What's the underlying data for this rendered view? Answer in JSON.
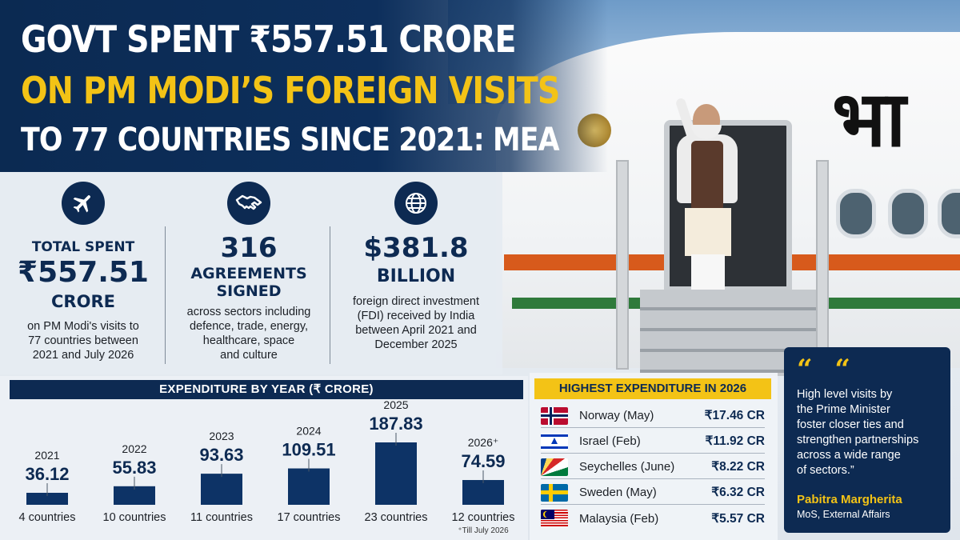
{
  "headline": {
    "line1": "GOVT SPENT ₹557.51 CRORE",
    "line2": "ON PM MODI’S FOREIGN VISITS",
    "line3": "TO 77 COUNTRIES SINCE 2021: MEA"
  },
  "photo": {
    "aircraft_text": "भा"
  },
  "stats": [
    {
      "icon": "airplane-icon",
      "label": "TOTAL SPENT",
      "value": "₹557.51",
      "unit": "CRORE",
      "desc": [
        "on PM Modi's visits to",
        "77 countries between",
        "2021 and July 2026"
      ]
    },
    {
      "icon": "handshake-icon",
      "value": "316",
      "label_lines": [
        "AGREEMENTS",
        "SIGNED"
      ],
      "desc": [
        "across sectors including",
        "defence, trade, energy,",
        "healthcare, space",
        "and culture"
      ]
    },
    {
      "icon": "globe-icon",
      "value": "$381.8",
      "unit": "BILLION",
      "desc": [
        "foreign direct investment",
        "(FDI) received by India",
        "between April 2021 and",
        "December 2025"
      ]
    }
  ],
  "bar_section_title": "EXPENDITURE BY YEAR (₹ CRORE)",
  "chart_data": {
    "type": "bar",
    "title": "EXPENDITURE BY YEAR (₹ CRORE)",
    "categories": [
      "2021",
      "2022",
      "2023",
      "2024",
      "2025",
      "2026⁺"
    ],
    "values": [
      36.12,
      55.83,
      93.63,
      109.51,
      187.83,
      74.59
    ],
    "value_labels": [
      "36.12",
      "55.83",
      "93.63",
      "109.51",
      "187.83",
      "74.59"
    ],
    "sublabels": [
      "4 countries",
      "10 countries",
      "11 countries",
      "17 countries",
      "23 countries",
      "12 countries"
    ],
    "footnote": "⁺Till July 2026",
    "ylim": [
      0,
      187.83
    ],
    "bar_color": "#0d3366"
  },
  "highest": {
    "title": "HIGHEST EXPENDITURE IN 2026",
    "rows": [
      {
        "flag": "norway-flag",
        "country": "Norway (May)",
        "amount": "₹17.46 CR"
      },
      {
        "flag": "israel-flag",
        "country": "Israel (Feb)",
        "amount": "₹11.92 CR"
      },
      {
        "flag": "seychelles-flag",
        "country": "Seychelles (June)",
        "amount": "₹8.22 CR"
      },
      {
        "flag": "sweden-flag",
        "country": "Sweden (May)",
        "amount": "₹6.32 CR"
      },
      {
        "flag": "malaysia-flag",
        "country": "Malaysia (Feb)",
        "amount": "₹5.57 CR"
      }
    ]
  },
  "quote": {
    "marks": "“ “",
    "lines": [
      "High level visits by",
      "the Prime Minister",
      "foster closer ties and",
      "strengthen partnerships",
      "across a wide range",
      "of sectors.”"
    ],
    "name": "Pabitra Margherita",
    "role": "MoS, External Affairs"
  },
  "colors": {
    "navy": "#0d2a52",
    "accent_yellow": "#f3c316",
    "bar": "#0d3366"
  }
}
